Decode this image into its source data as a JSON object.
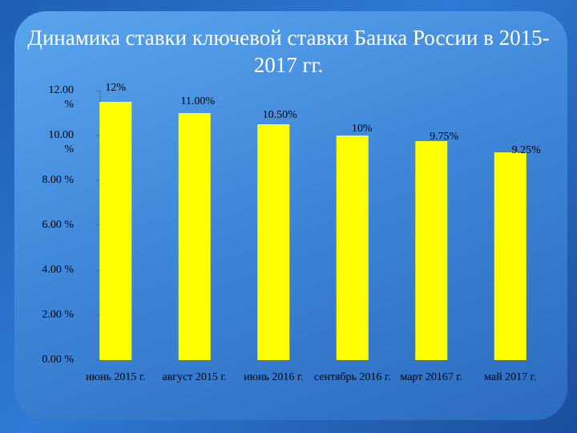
{
  "chart_data": {
    "type": "bar",
    "title": "Динамика ставки ключевой ставки Банка России в 2015-2017 гг.",
    "categories": [
      "июнь 2015 г.",
      "август 2015 г.",
      "июнь 2016 г.",
      "сентябрь 2016 г.",
      "март 20167 г.",
      "май 2017 г."
    ],
    "values": [
      11.5,
      11,
      10.5,
      10,
      9.75,
      9.25
    ],
    "value_labels": [
      "12%",
      "11.00%",
      "10.50%",
      "10%",
      "9.75%",
      "9.25%"
    ],
    "color": "#ffff00",
    "ylim": [
      0,
      12
    ],
    "yticks": [
      {
        "value": 0,
        "label": "0.00 %"
      },
      {
        "value": 2,
        "label": "2.00 %"
      },
      {
        "value": 4,
        "label": "4.00 %"
      },
      {
        "value": 6,
        "label": "6.00 %"
      },
      {
        "value": 8,
        "label": "8.00 %"
      },
      {
        "value": 10,
        "label": "10.00 %"
      },
      {
        "value": 12,
        "label": "12.00 %"
      }
    ],
    "grid": false
  }
}
